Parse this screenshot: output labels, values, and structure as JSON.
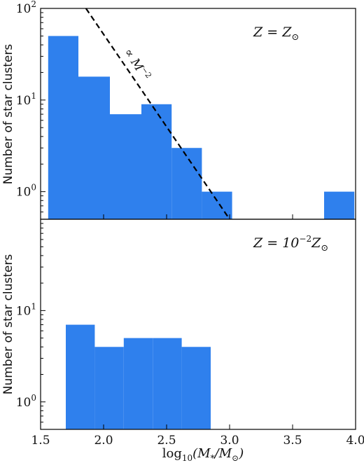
{
  "chart_data": [
    {
      "type": "bar",
      "panel": "top",
      "annotation_main": "Z = Z",
      "annotation_sub": "⊙",
      "line_label_prefix": "∝ M",
      "line_label_exp": "−2",
      "ylabel": "Number of star clusters",
      "xlim": [
        1.5,
        4.0
      ],
      "ylim": [
        0.5,
        100
      ],
      "yscale": "log",
      "yticks": [
        {
          "base": "10",
          "exp": "0",
          "value": 1
        },
        {
          "base": "10",
          "exp": "1",
          "value": 10
        },
        {
          "base": "10",
          "exp": "2",
          "value": 100
        }
      ],
      "color": "#2f80ed",
      "bars": [
        {
          "x0": 1.56,
          "x1": 1.8,
          "value": 50
        },
        {
          "x0": 1.8,
          "x1": 2.05,
          "value": 18
        },
        {
          "x0": 2.05,
          "x1": 2.3,
          "value": 7
        },
        {
          "x0": 2.3,
          "x1": 2.54,
          "value": 9
        },
        {
          "x0": 2.54,
          "x1": 2.78,
          "value": 3
        },
        {
          "x0": 2.78,
          "x1": 3.02,
          "value": 1
        },
        {
          "x0": 3.75,
          "x1": 3.99,
          "value": 1
        }
      ],
      "powerlaw_line": {
        "x": [
          1.86,
          3.0
        ],
        "y": [
          100,
          0.5
        ],
        "style": "dashed",
        "color": "#000000"
      }
    },
    {
      "type": "bar",
      "panel": "bottom",
      "annotation_main": "Z = 10",
      "annotation_exp": "−2",
      "annotation_after": "Z",
      "annotation_sub": "⊙",
      "ylabel": "Number of star clusters",
      "xlabel_prefix": "log",
      "xlabel_sub": "10",
      "xlabel_body": "(M",
      "xlabel_body_sub": "*",
      "xlabel_mid": "/M",
      "xlabel_end_sub": "⊙",
      "xlabel_close": ")",
      "xlim": [
        1.5,
        4.0
      ],
      "ylim": [
        0.5,
        100
      ],
      "yscale": "log",
      "yticks": [
        {
          "base": "10",
          "exp": "0",
          "value": 1
        },
        {
          "base": "10",
          "exp": "1",
          "value": 10
        }
      ],
      "xticks": [
        "1.5",
        "2.0",
        "2.5",
        "3.0",
        "3.5",
        "4.0"
      ],
      "xtick_values": [
        1.5,
        2.0,
        2.5,
        3.0,
        3.5,
        4.0
      ],
      "color": "#2f80ed",
      "bars": [
        {
          "x0": 1.7,
          "x1": 1.93,
          "value": 7
        },
        {
          "x0": 1.93,
          "x1": 2.16,
          "value": 4
        },
        {
          "x0": 2.16,
          "x1": 2.39,
          "value": 5
        },
        {
          "x0": 2.39,
          "x1": 2.62,
          "value": 5
        },
        {
          "x0": 2.62,
          "x1": 2.85,
          "value": 4
        }
      ]
    }
  ]
}
